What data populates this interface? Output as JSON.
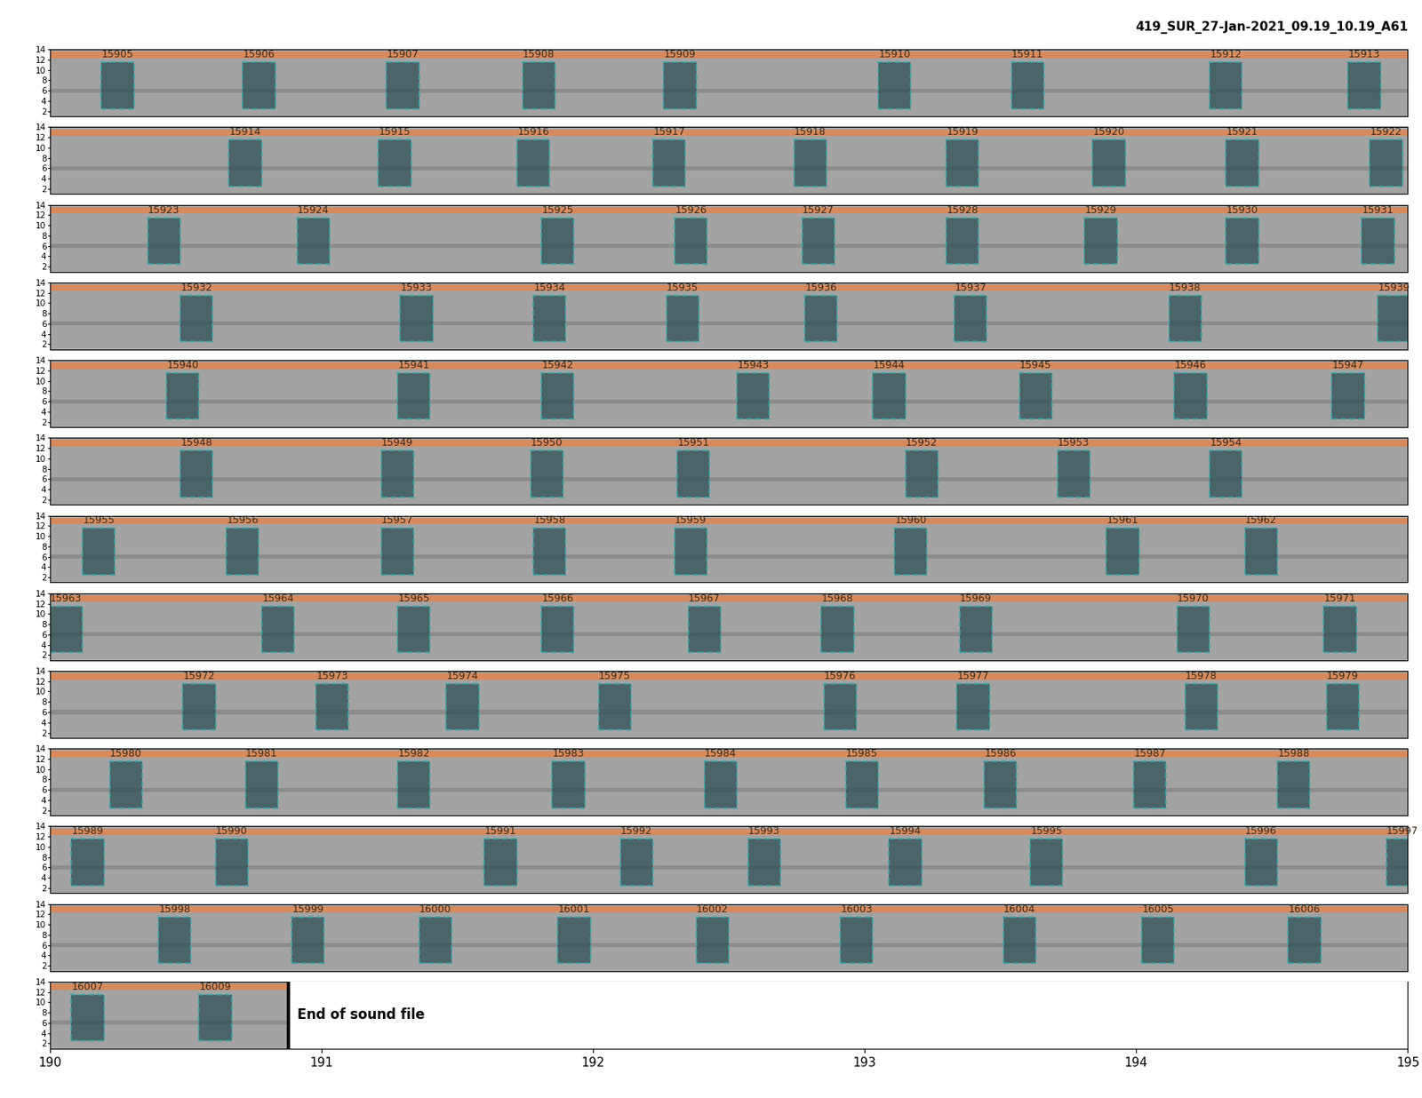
{
  "chart_data": {
    "type": "spectrogram_detections",
    "title": "419_SUR_27-Jan-2021_09.19_10.19_A61",
    "xlim": [
      190,
      195
    ],
    "xticks": [
      190,
      191,
      192,
      193,
      194,
      195
    ],
    "ylim": [
      1,
      14
    ],
    "yticks": [
      2,
      4,
      6,
      8,
      10,
      12,
      14
    ],
    "box_low_freq": 2.5,
    "box_high_freq": 11.5,
    "box_duration": 0.12,
    "color": "#3aa6a6",
    "rows": [
      {
        "detections": [
          {
            "label": 15905,
            "x": 190.19
          },
          {
            "label": 15906,
            "x": 190.71
          },
          {
            "label": 15907,
            "x": 191.24
          },
          {
            "label": 15908,
            "x": 191.74
          },
          {
            "label": 15909,
            "x": 192.26
          },
          {
            "label": 15910,
            "x": 193.05
          },
          {
            "label": 15911,
            "x": 193.54
          },
          {
            "label": 15912,
            "x": 194.27
          },
          {
            "label": 15913,
            "x": 194.78
          }
        ]
      },
      {
        "detections": [
          {
            "label": 15914,
            "x": 190.66
          },
          {
            "label": 15915,
            "x": 191.21
          },
          {
            "label": 15916,
            "x": 191.72
          },
          {
            "label": 15917,
            "x": 192.22
          },
          {
            "label": 15918,
            "x": 192.74
          },
          {
            "label": 15919,
            "x": 193.3
          },
          {
            "label": 15920,
            "x": 193.84
          },
          {
            "label": 15921,
            "x": 194.33
          },
          {
            "label": 15922,
            "x": 194.86
          }
        ]
      },
      {
        "detections": [
          {
            "label": 15923,
            "x": 190.36
          },
          {
            "label": 15924,
            "x": 190.91
          },
          {
            "label": 15925,
            "x": 191.81
          },
          {
            "label": 15926,
            "x": 192.3
          },
          {
            "label": 15927,
            "x": 192.77
          },
          {
            "label": 15928,
            "x": 193.3
          },
          {
            "label": 15929,
            "x": 193.81
          },
          {
            "label": 15930,
            "x": 194.33
          },
          {
            "label": 15931,
            "x": 194.83
          }
        ]
      },
      {
        "detections": [
          {
            "label": 15932,
            "x": 190.48
          },
          {
            "label": 15933,
            "x": 191.29
          },
          {
            "label": 15934,
            "x": 191.78
          },
          {
            "label": 15935,
            "x": 192.27
          },
          {
            "label": 15936,
            "x": 192.78
          },
          {
            "label": 15937,
            "x": 193.33
          },
          {
            "label": 15938,
            "x": 194.12
          },
          {
            "label": 15939,
            "x": 194.89
          }
        ]
      },
      {
        "detections": [
          {
            "label": 15940,
            "x": 190.43
          },
          {
            "label": 15941,
            "x": 191.28
          },
          {
            "label": 15942,
            "x": 191.81
          },
          {
            "label": 15943,
            "x": 192.53
          },
          {
            "label": 15944,
            "x": 193.03
          },
          {
            "label": 15945,
            "x": 193.57
          },
          {
            "label": 15946,
            "x": 194.14
          },
          {
            "label": 15947,
            "x": 194.72
          }
        ]
      },
      {
        "detections": [
          {
            "label": 15948,
            "x": 190.48
          },
          {
            "label": 15949,
            "x": 191.22
          },
          {
            "label": 15950,
            "x": 191.77
          },
          {
            "label": 15951,
            "x": 192.31
          },
          {
            "label": 15952,
            "x": 193.15
          },
          {
            "label": 15953,
            "x": 193.71
          },
          {
            "label": 15954,
            "x": 194.27
          }
        ]
      },
      {
        "detections": [
          {
            "label": 15955,
            "x": 190.12
          },
          {
            "label": 15956,
            "x": 190.65
          },
          {
            "label": 15957,
            "x": 191.22
          },
          {
            "label": 15958,
            "x": 191.78
          },
          {
            "label": 15959,
            "x": 192.3
          },
          {
            "label": 15960,
            "x": 193.11
          },
          {
            "label": 15961,
            "x": 193.89
          },
          {
            "label": 15962,
            "x": 194.4
          }
        ]
      },
      {
        "detections": [
          {
            "label": 15963,
            "x": 190.0
          },
          {
            "label": 15964,
            "x": 190.78
          },
          {
            "label": 15965,
            "x": 191.28
          },
          {
            "label": 15966,
            "x": 191.81
          },
          {
            "label": 15967,
            "x": 192.35
          },
          {
            "label": 15968,
            "x": 192.84
          },
          {
            "label": 15969,
            "x": 193.35
          },
          {
            "label": 15970,
            "x": 194.15
          },
          {
            "label": 15971,
            "x": 194.69
          }
        ]
      },
      {
        "detections": [
          {
            "label": 15972,
            "x": 190.49
          },
          {
            "label": 15973,
            "x": 190.98
          },
          {
            "label": 15974,
            "x": 191.46
          },
          {
            "label": 15975,
            "x": 192.02
          },
          {
            "label": 15976,
            "x": 192.85
          },
          {
            "label": 15977,
            "x": 193.34
          },
          {
            "label": 15978,
            "x": 194.18
          },
          {
            "label": 15979,
            "x": 194.7
          }
        ]
      },
      {
        "detections": [
          {
            "label": 15980,
            "x": 190.22
          },
          {
            "label": 15981,
            "x": 190.72
          },
          {
            "label": 15982,
            "x": 191.28
          },
          {
            "label": 15983,
            "x": 191.85
          },
          {
            "label": 15984,
            "x": 192.41
          },
          {
            "label": 15985,
            "x": 192.93
          },
          {
            "label": 15986,
            "x": 193.44
          },
          {
            "label": 15987,
            "x": 193.99
          },
          {
            "label": 15988,
            "x": 194.52
          }
        ]
      },
      {
        "detections": [
          {
            "label": 15989,
            "x": 190.08
          },
          {
            "label": 15990,
            "x": 190.61
          },
          {
            "label": 15991,
            "x": 191.6
          },
          {
            "label": 15992,
            "x": 192.1
          },
          {
            "label": 15993,
            "x": 192.57
          },
          {
            "label": 15994,
            "x": 193.09
          },
          {
            "label": 15995,
            "x": 193.61
          },
          {
            "label": 15996,
            "x": 194.4
          },
          {
            "label": 15997,
            "x": 194.92
          }
        ]
      },
      {
        "detections": [
          {
            "label": 15998,
            "x": 190.4
          },
          {
            "label": 15999,
            "x": 190.89
          },
          {
            "label": 16000,
            "x": 191.36
          },
          {
            "label": 16001,
            "x": 191.87
          },
          {
            "label": 16002,
            "x": 192.38
          },
          {
            "label": 16003,
            "x": 192.91
          },
          {
            "label": 16004,
            "x": 193.51
          },
          {
            "label": 16005,
            "x": 194.02
          },
          {
            "label": 16006,
            "x": 194.56
          }
        ]
      },
      {
        "detections": [
          {
            "label": 16007,
            "x": 190.08
          },
          {
            "label": 16009,
            "x": 190.55
          }
        ],
        "end_of_file": {
          "x": 190.88,
          "text": "End of sound file"
        }
      }
    ]
  }
}
